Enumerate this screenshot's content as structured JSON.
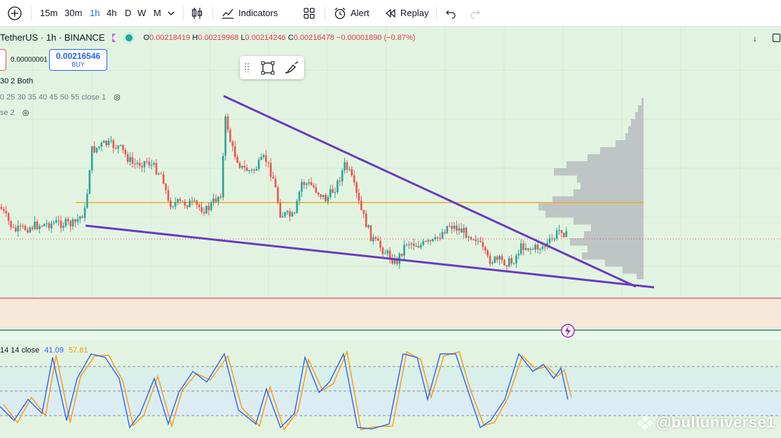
{
  "toolbar": {
    "intervals": [
      "15m",
      "30m",
      "1h",
      "4h",
      "D",
      "W",
      "M"
    ],
    "indicators_label": "Indicators",
    "alert_label": "Alert",
    "replay_label": "Replay"
  },
  "legend": {
    "symbol": "TetherUS · 1h · BINANCE",
    "o_label": "O",
    "o_value": "0.00218419",
    "h_label": "H",
    "h_value": "0.00219968",
    "l_label": "L",
    "l_value": "0.00214246",
    "c_label": "C",
    "c_value": "0.00216478",
    "change": "−0.00001890 (−0.87%)"
  },
  "trade": {
    "spread": "0.00000001",
    "buy_price": "0.00216546",
    "buy_label": "BUY"
  },
  "indicators": {
    "line1": "30 2 Both",
    "line2": "0 25 30 35 40 45 50 55 close 1",
    "line3": "se 2"
  },
  "rsi": {
    "params": "14 14 close",
    "k_value": "41.09",
    "d_value": "57.81"
  },
  "watermark": "@bulluniverse1",
  "colors": {
    "up": "#26a69a",
    "down": "#ef5350",
    "trendline": "#6a3bbf",
    "orange_line": "#f5a623",
    "k_line": "#2962ff",
    "d_line": "#ff9800"
  }
}
